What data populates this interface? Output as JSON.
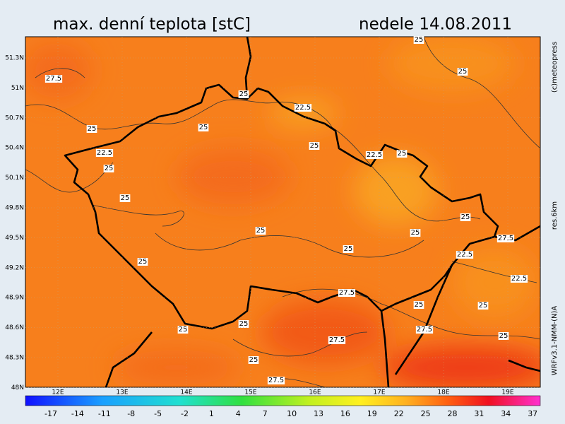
{
  "header": {
    "title": "max. denní teplota [stC]",
    "date": "nedele 14.08.2011"
  },
  "side_texts": {
    "copyright": "(c)meteopress",
    "resolution": "res.6km",
    "model": "WRFv3.1-NMM-(N)A"
  },
  "lat_labels": [
    "51.3N",
    "51N",
    "50.7N",
    "50.4N",
    "50.1N",
    "49.8N",
    "49.5N",
    "49.2N",
    "48.9N",
    "48.6N",
    "48.3N",
    "48N"
  ],
  "lon_labels": [
    "12E",
    "13E",
    "14E",
    "15E",
    "16E",
    "17E",
    "18E",
    "19E"
  ],
  "contour_labels": [
    "25",
    "27.5",
    "25",
    "25",
    "22.5",
    "25",
    "25",
    "25",
    "22.5",
    "22.5",
    "25",
    "25",
    "25",
    "25",
    "25",
    "25",
    "27.5",
    "25",
    "22.5",
    "25",
    "22.5",
    "27.5",
    "25",
    "25",
    "25",
    "25",
    "27.5",
    "25",
    "27.5",
    "25",
    "27.5"
  ],
  "colorbar_labels": [
    -17,
    -14,
    -11,
    -8,
    -5,
    -2,
    1,
    4,
    7,
    10,
    13,
    16,
    19,
    22,
    25,
    28,
    31,
    34,
    37
  ]
}
